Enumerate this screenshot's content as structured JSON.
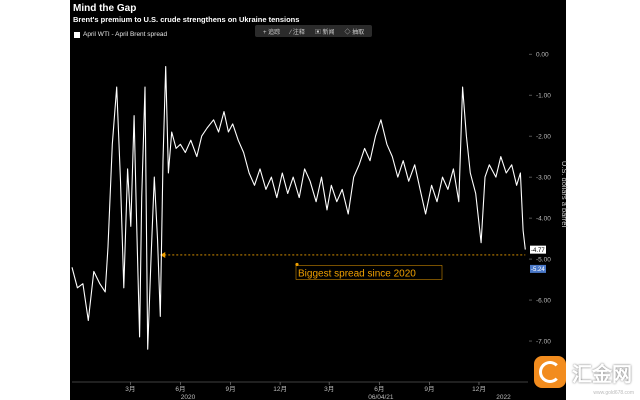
{
  "header": {
    "title": "Mind the Gap",
    "subtitle": "Brent's premium to U.S. crude strengthens on Ukraine tensions",
    "legend": "April WTI - April Brent spread"
  },
  "toolbar": {
    "items": [
      "+ 追踪",
      "⁄ 注释",
      "▣ 新闻",
      "◇ 抽取"
    ]
  },
  "watermark": {
    "text": "汇金网",
    "url": "www.gold678.com"
  },
  "colors": {
    "background": "#000000",
    "line": "#ffffff",
    "annotation": "#f0a000",
    "last_value_box": "#ffffff",
    "marker_box": "#4a78c8"
  },
  "chart_data": {
    "type": "line",
    "title": "Mind the Gap",
    "subtitle": "Brent's premium to U.S. crude strengthens on Ukraine tensions",
    "ylabel": "U.S. dollars a barrel",
    "xlabel": "",
    "ylim": [
      -8.0,
      0.2
    ],
    "yticks": [
      "0.00",
      "-1.00",
      "-2.00",
      "-3.00",
      "-4.00",
      "-5.00",
      "-6.00",
      "-7.00"
    ],
    "ytick_values": [
      0,
      -1,
      -2,
      -3,
      -4,
      -5,
      -6,
      -7
    ],
    "xlim": [
      "2019-11-15",
      "2022-03-01"
    ],
    "x_month_ticks": [
      {
        "label": "3月",
        "date": "2020-03-01"
      },
      {
        "label": "6月",
        "date": "2020-06-01"
      },
      {
        "label": "9月",
        "date": "2020-09-01"
      },
      {
        "label": "12月",
        "date": "2020-12-01"
      },
      {
        "label": "3月",
        "date": "2021-03-01"
      },
      {
        "label": "6月",
        "date": "2021-06-01"
      },
      {
        "label": "9月",
        "date": "2021-09-01"
      },
      {
        "label": "12月",
        "date": "2021-12-01"
      }
    ],
    "x_year_ticks": [
      {
        "label": "2020",
        "date": "2020-06-15"
      },
      {
        "label": "06/04/21",
        "date": "2021-06-04"
      },
      {
        "label": "2022",
        "date": "2022-01-15"
      }
    ],
    "grid": false,
    "legend": "top-left",
    "series": [
      {
        "name": "April WTI - April Brent spread",
        "points": [
          [
            "2019-11-15",
            -5.2
          ],
          [
            "2019-11-25",
            -5.7
          ],
          [
            "2019-12-05",
            -5.6
          ],
          [
            "2019-12-15",
            -6.5
          ],
          [
            "2019-12-25",
            -5.3
          ],
          [
            "2020-01-05",
            -5.6
          ],
          [
            "2020-01-15",
            -5.8
          ],
          [
            "2020-01-20",
            -4.7
          ],
          [
            "2020-01-28",
            -2.2
          ],
          [
            "2020-02-05",
            -0.8
          ],
          [
            "2020-02-12",
            -3.1
          ],
          [
            "2020-02-18",
            -5.7
          ],
          [
            "2020-02-25",
            -2.8
          ],
          [
            "2020-03-02",
            -4.2
          ],
          [
            "2020-03-08",
            -1.5
          ],
          [
            "2020-03-12",
            -3.8
          ],
          [
            "2020-03-18",
            -6.9
          ],
          [
            "2020-03-22",
            -3.5
          ],
          [
            "2020-03-28",
            -0.8
          ],
          [
            "2020-04-02",
            -7.2
          ],
          [
            "2020-04-08",
            -5.0
          ],
          [
            "2020-04-14",
            -3.0
          ],
          [
            "2020-04-20",
            -4.5
          ],
          [
            "2020-04-25",
            -6.4
          ],
          [
            "2020-04-30",
            -2.6
          ],
          [
            "2020-05-05",
            -0.3
          ],
          [
            "2020-05-10",
            -2.9
          ],
          [
            "2020-05-16",
            -1.9
          ],
          [
            "2020-05-24",
            -2.3
          ],
          [
            "2020-06-01",
            -2.2
          ],
          [
            "2020-06-10",
            -2.4
          ],
          [
            "2020-06-20",
            -2.1
          ],
          [
            "2020-07-01",
            -2.5
          ],
          [
            "2020-07-10",
            -2.0
          ],
          [
            "2020-07-20",
            -1.8
          ],
          [
            "2020-08-01",
            -1.6
          ],
          [
            "2020-08-10",
            -1.9
          ],
          [
            "2020-08-20",
            -1.4
          ],
          [
            "2020-08-28",
            -1.9
          ],
          [
            "2020-09-05",
            -1.7
          ],
          [
            "2020-09-15",
            -2.1
          ],
          [
            "2020-09-25",
            -2.4
          ],
          [
            "2020-10-05",
            -2.9
          ],
          [
            "2020-10-15",
            -3.2
          ],
          [
            "2020-10-25",
            -2.8
          ],
          [
            "2020-11-05",
            -3.3
          ],
          [
            "2020-11-15",
            -3.0
          ],
          [
            "2020-11-25",
            -3.5
          ],
          [
            "2020-12-05",
            -2.9
          ],
          [
            "2020-12-15",
            -3.4
          ],
          [
            "2020-12-25",
            -3.0
          ],
          [
            "2021-01-05",
            -3.5
          ],
          [
            "2021-01-15",
            -2.8
          ],
          [
            "2021-01-25",
            -3.1
          ],
          [
            "2021-02-05",
            -3.6
          ],
          [
            "2021-02-15",
            -3.0
          ],
          [
            "2021-02-25",
            -3.8
          ],
          [
            "2021-03-05",
            -3.2
          ],
          [
            "2021-03-15",
            -3.6
          ],
          [
            "2021-03-25",
            -3.3
          ],
          [
            "2021-04-05",
            -3.9
          ],
          [
            "2021-04-15",
            -3.0
          ],
          [
            "2021-04-25",
            -2.7
          ],
          [
            "2021-05-05",
            -2.3
          ],
          [
            "2021-05-15",
            -2.6
          ],
          [
            "2021-05-25",
            -2.0
          ],
          [
            "2021-06-04",
            -1.6
          ],
          [
            "2021-06-15",
            -2.2
          ],
          [
            "2021-06-25",
            -2.5
          ],
          [
            "2021-07-05",
            -3.0
          ],
          [
            "2021-07-15",
            -2.6
          ],
          [
            "2021-07-25",
            -3.1
          ],
          [
            "2021-08-05",
            -2.7
          ],
          [
            "2021-08-15",
            -3.3
          ],
          [
            "2021-08-25",
            -3.9
          ],
          [
            "2021-09-05",
            -3.2
          ],
          [
            "2021-09-15",
            -3.6
          ],
          [
            "2021-09-25",
            -3.0
          ],
          [
            "2021-10-05",
            -3.3
          ],
          [
            "2021-10-15",
            -2.8
          ],
          [
            "2021-10-25",
            -3.6
          ],
          [
            "2021-11-01",
            -0.8
          ],
          [
            "2021-11-08",
            -2.0
          ],
          [
            "2021-11-15",
            -2.9
          ],
          [
            "2021-11-25",
            -3.4
          ],
          [
            "2021-12-05",
            -4.6
          ],
          [
            "2021-12-12",
            -3.0
          ],
          [
            "2021-12-20",
            -2.7
          ],
          [
            "2022-01-01",
            -3.0
          ],
          [
            "2022-01-10",
            -2.5
          ],
          [
            "2022-01-20",
            -2.9
          ],
          [
            "2022-01-30",
            -2.7
          ],
          [
            "2022-02-08",
            -3.2
          ],
          [
            "2022-02-15",
            -2.9
          ],
          [
            "2022-02-20",
            -4.3
          ],
          [
            "2022-02-24",
            -4.77
          ]
        ]
      }
    ],
    "last_values": [
      {
        "label": "-4.77",
        "value": -4.77
      },
      {
        "label": "-5.24",
        "value": -5.24
      }
    ],
    "reference_line": {
      "value": -4.9,
      "from": "2020-04-25",
      "to": "2022-02-24",
      "style": "dashed"
    },
    "annotations": [
      {
        "text": "Biggest spread since 2020",
        "x": "2021-01-01",
        "y": -5.35
      }
    ]
  }
}
